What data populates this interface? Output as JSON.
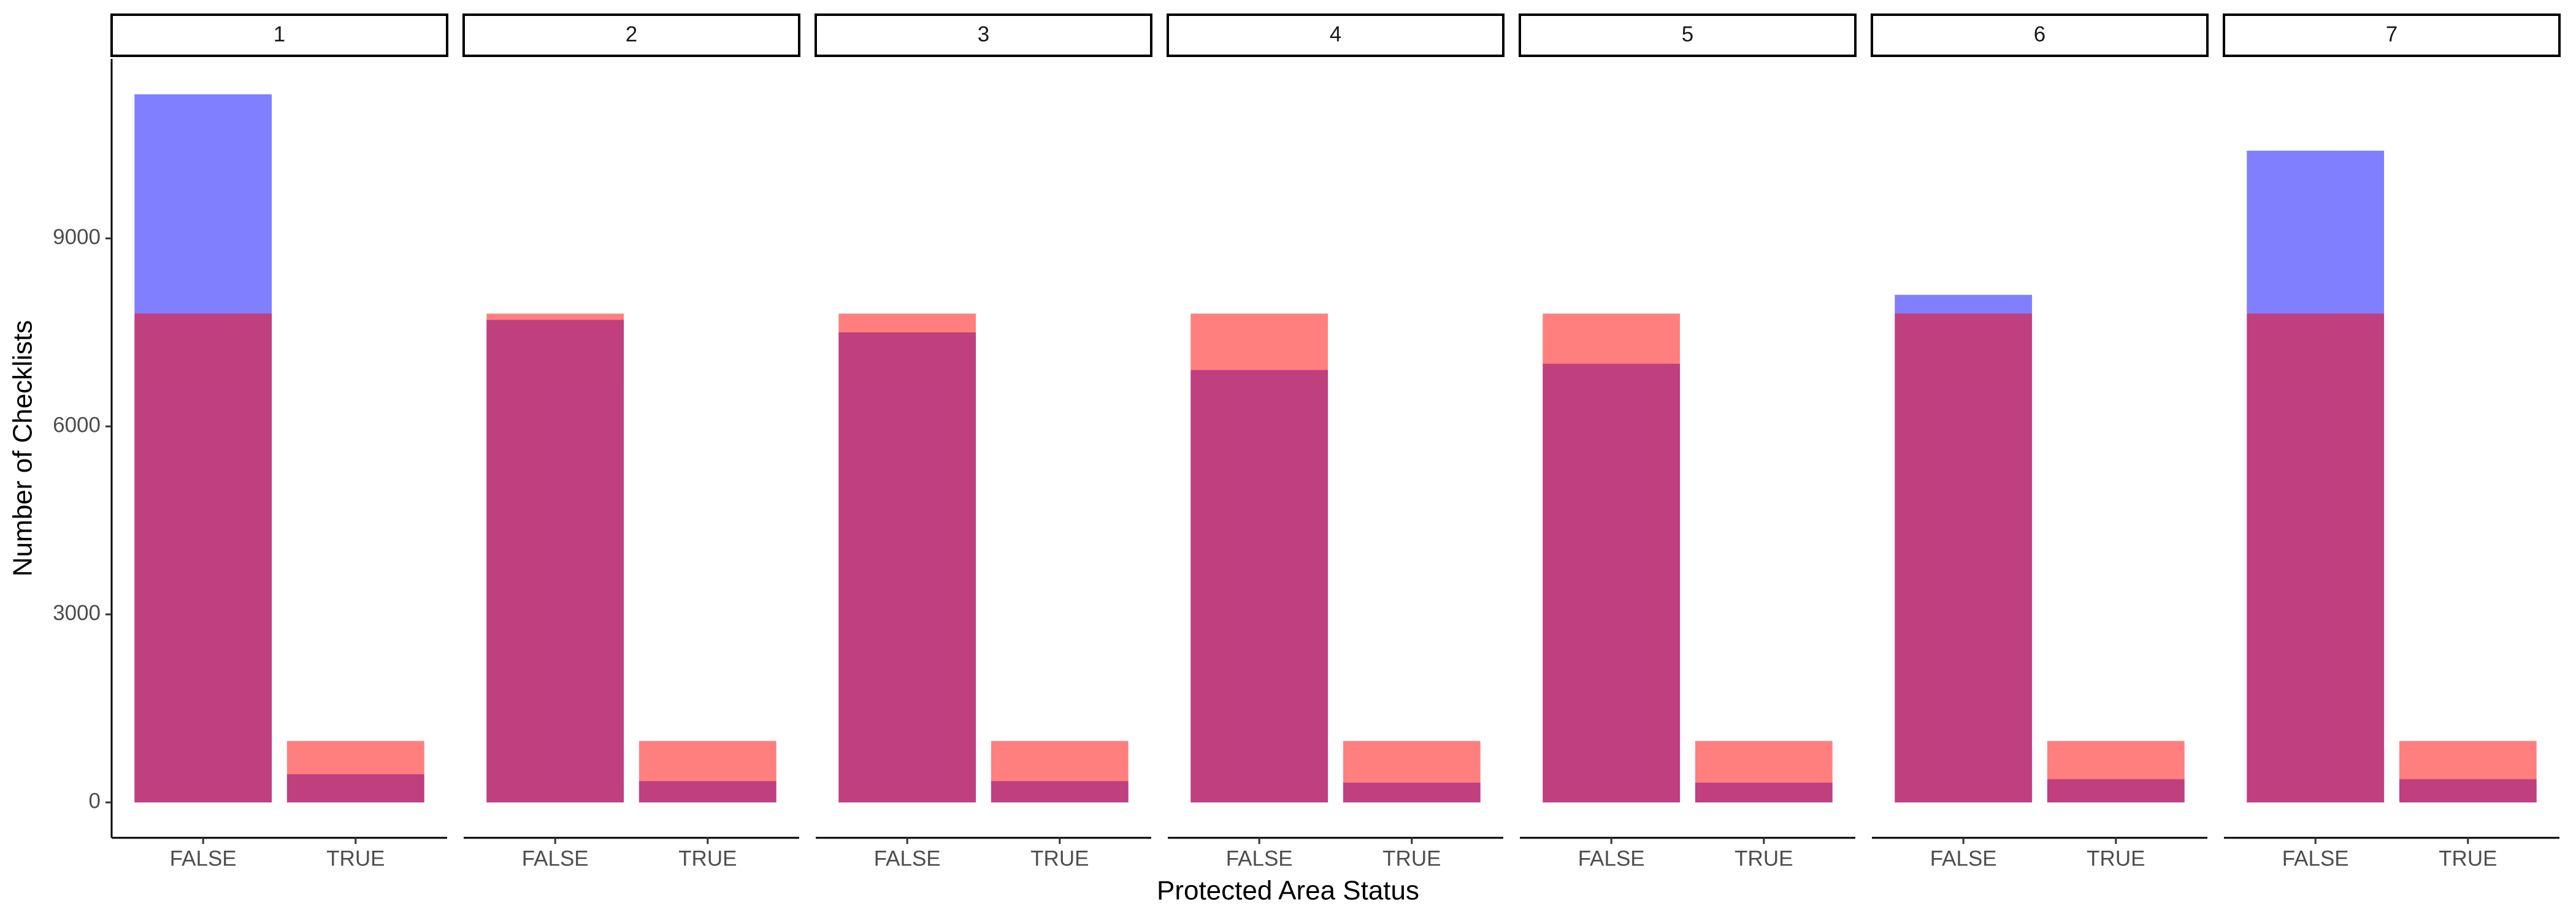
{
  "chart_data": {
    "type": "bar",
    "xlabel": "Protected Area Status",
    "ylabel": "Number of Checklists",
    "categories": [
      "FALSE",
      "TRUE"
    ],
    "ylim": [
      -565,
      11865
    ],
    "yticks": [
      0,
      3000,
      6000,
      9000
    ],
    "grid": false,
    "opacity": 0.5,
    "facets": [
      {
        "title": "1",
        "series": [
          {
            "color": "#0000ff",
            "values": [
              11300,
              450
            ]
          },
          {
            "color": "#ff0000",
            "values": [
              7800,
              980
            ]
          }
        ]
      },
      {
        "title": "2",
        "series": [
          {
            "color": "#0000ff",
            "values": [
              7700,
              340
            ]
          },
          {
            "color": "#ff0000",
            "values": [
              7800,
              980
            ]
          }
        ]
      },
      {
        "title": "3",
        "series": [
          {
            "color": "#0000ff",
            "values": [
              7500,
              340
            ]
          },
          {
            "color": "#ff0000",
            "values": [
              7800,
              980
            ]
          }
        ]
      },
      {
        "title": "4",
        "series": [
          {
            "color": "#0000ff",
            "values": [
              6900,
              315
            ]
          },
          {
            "color": "#ff0000",
            "values": [
              7800,
              980
            ]
          }
        ]
      },
      {
        "title": "5",
        "series": [
          {
            "color": "#0000ff",
            "values": [
              7000,
              315
            ]
          },
          {
            "color": "#ff0000",
            "values": [
              7800,
              980
            ]
          }
        ]
      },
      {
        "title": "6",
        "series": [
          {
            "color": "#0000ff",
            "values": [
              8100,
              370
            ]
          },
          {
            "color": "#ff0000",
            "values": [
              7800,
              980
            ]
          }
        ]
      },
      {
        "title": "7",
        "series": [
          {
            "color": "#0000ff",
            "values": [
              10400,
              370
            ]
          },
          {
            "color": "#ff0000",
            "values": [
              7800,
              980
            ]
          }
        ]
      }
    ]
  }
}
